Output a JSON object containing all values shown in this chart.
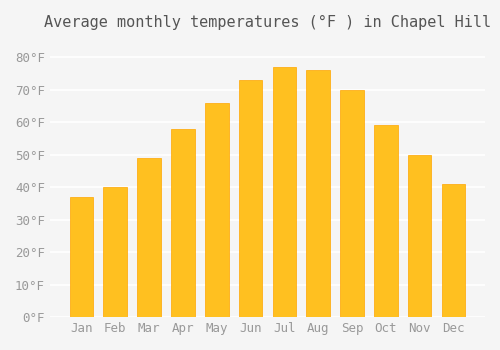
{
  "title": "Average monthly temperatures (°F ) in Chapel Hill",
  "months": [
    "Jan",
    "Feb",
    "Mar",
    "Apr",
    "May",
    "Jun",
    "Jul",
    "Aug",
    "Sep",
    "Oct",
    "Nov",
    "Dec"
  ],
  "values": [
    37,
    40,
    49,
    58,
    66,
    73,
    77,
    76,
    70,
    59,
    50,
    41
  ],
  "bar_color_main": "#FFC020",
  "bar_color_edge": "#FFA500",
  "background_color": "#F5F5F5",
  "grid_color": "#FFFFFF",
  "title_color": "#555555",
  "tick_color": "#999999",
  "ylim": [
    0,
    85
  ],
  "yticks": [
    0,
    10,
    20,
    30,
    40,
    50,
    60,
    70,
    80
  ],
  "title_fontsize": 11,
  "tick_fontsize": 9
}
